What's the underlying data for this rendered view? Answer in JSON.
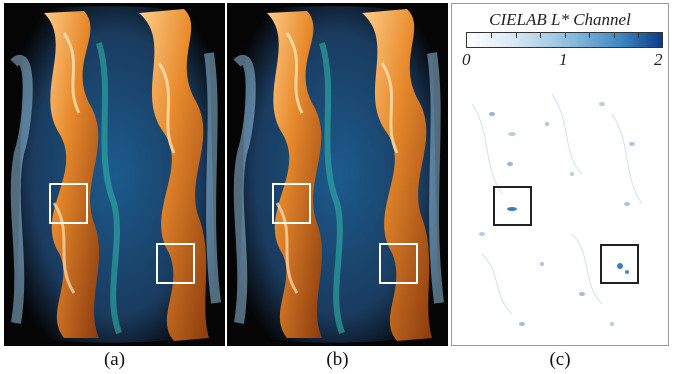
{
  "captions": {
    "a": "(a)",
    "b": "(b)",
    "c": "(c)"
  },
  "colorbar": {
    "title": "CIELAB L* Channel",
    "labels": [
      "0",
      "1",
      "2"
    ]
  },
  "colors": {
    "background_dark": "#050505",
    "fire_orange": "#e88a2c",
    "fire_highlight": "#ffcf8a",
    "blue_glow": "#4aa3e0",
    "teal": "#2fb3a6",
    "diff_blue": "#2b6db5"
  }
}
